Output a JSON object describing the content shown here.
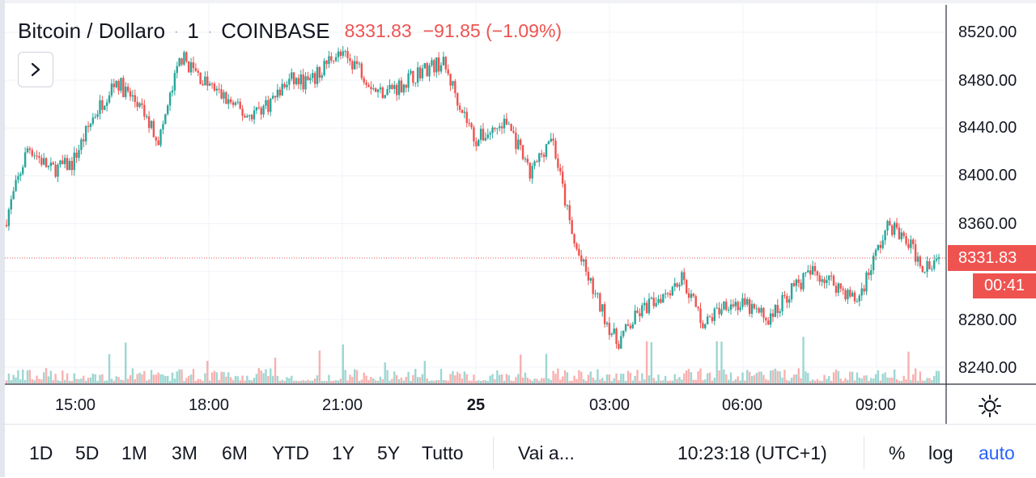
{
  "header": {
    "symbol": "Bitcoin / Dollaro",
    "interval": "1",
    "exchange": "COINBASE",
    "dot": "·",
    "last_price": "8331.83",
    "change": "−91.85 (−1.09%)"
  },
  "price_axis": {
    "labels": [
      "8520.00",
      "8480.00",
      "8440.00",
      "8400.00",
      "8360.00",
      "8280.00",
      "8240.00"
    ],
    "last_price_tag": "8331.83",
    "countdown_tag": "00:41"
  },
  "time_axis": {
    "labels": [
      "15:00",
      "18:00",
      "21:00",
      "25",
      "03:00",
      "06:00",
      "09:00"
    ]
  },
  "bottom_toolbar": {
    "ranges": [
      "1D",
      "5D",
      "1M",
      "3M",
      "6M",
      "YTD",
      "1Y",
      "5Y",
      "Tutto"
    ],
    "goto": "Vai a...",
    "clock": "10:23:18 (UTC+1)",
    "percent": "%",
    "log": "log",
    "auto": "auto"
  },
  "colors": {
    "up": "#26a69a",
    "down": "#ef5350",
    "accent": "#2962ff",
    "grid": "#f0f3fa"
  },
  "chart_data": {
    "type": "candlestick",
    "symbol": "Bitcoin / Dollaro",
    "exchange": "COINBASE",
    "interval": "1",
    "y_range": [
      8228,
      8546
    ],
    "y_ticks": [
      8240,
      8280,
      8320,
      8360,
      8400,
      8440,
      8480,
      8520
    ],
    "last_price": 8331.83,
    "x_ticks": [
      "15:00",
      "18:00",
      "21:00",
      "25",
      "03:00",
      "06:00",
      "09:00"
    ],
    "grid": true,
    "price_path": [
      [
        "13:00",
        8365
      ],
      [
        "13:30",
        8425
      ],
      [
        "14:00",
        8405
      ],
      [
        "14:30",
        8410
      ],
      [
        "15:00",
        8450
      ],
      [
        "15:30",
        8480
      ],
      [
        "16:00",
        8460
      ],
      [
        "16:30",
        8430
      ],
      [
        "17:00",
        8500
      ],
      [
        "17:30",
        8480
      ],
      [
        "18:00",
        8465
      ],
      [
        "18:30",
        8450
      ],
      [
        "19:00",
        8460
      ],
      [
        "19:30",
        8480
      ],
      [
        "20:00",
        8478
      ],
      [
        "20:30",
        8502
      ],
      [
        "21:00",
        8495
      ],
      [
        "21:30",
        8470
      ],
      [
        "22:00",
        8475
      ],
      [
        "22:30",
        8488
      ],
      [
        "23:00",
        8495
      ],
      [
        "23:45",
        8430
      ],
      [
        "00:30",
        8445
      ],
      [
        "01:00",
        8400
      ],
      [
        "01:30",
        8435
      ],
      [
        "02:00",
        8345
      ],
      [
        "02:30",
        8300
      ],
      [
        "03:00",
        8260
      ],
      [
        "03:30",
        8285
      ],
      [
        "04:00",
        8300
      ],
      [
        "04:30",
        8315
      ],
      [
        "05:00",
        8275
      ],
      [
        "05:30",
        8295
      ],
      [
        "06:00",
        8290
      ],
      [
        "06:30",
        8280
      ],
      [
        "07:00",
        8305
      ],
      [
        "07:30",
        8320
      ],
      [
        "08:00",
        8310
      ],
      [
        "08:30",
        8295
      ],
      [
        "09:00",
        8340
      ],
      [
        "09:15",
        8360
      ],
      [
        "09:45",
        8340
      ],
      [
        "10:00",
        8325
      ],
      [
        "10:23",
        8331.83
      ]
    ]
  }
}
